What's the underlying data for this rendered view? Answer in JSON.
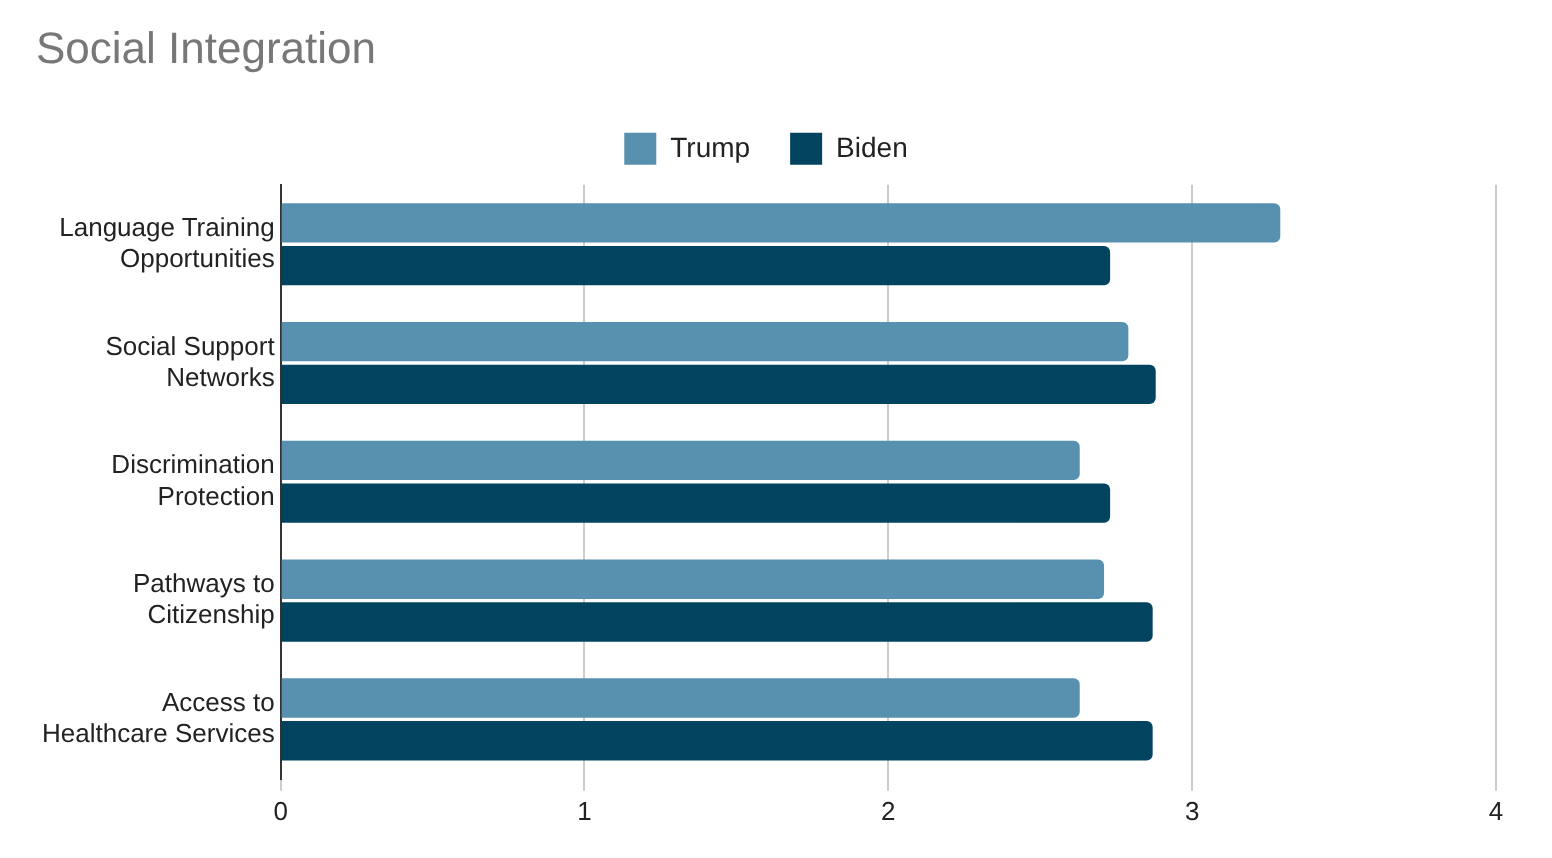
{
  "chart_data": {
    "type": "bar",
    "orientation": "horizontal",
    "title": "Social Integration",
    "categories": [
      "Language Training\nOpportunities",
      "Social Support\nNetworks",
      "Discrimination\nProtection",
      "Pathways to\nCitizenship",
      "Access to\nHealthcare Services"
    ],
    "series": [
      {
        "name": "Trump",
        "color": "#5891b0",
        "values": [
          3.29,
          2.79,
          2.63,
          2.71,
          2.63
        ]
      },
      {
        "name": "Biden",
        "color": "#02445f",
        "values": [
          2.73,
          2.88,
          2.73,
          2.87,
          2.87
        ]
      }
    ],
    "xlim": [
      0,
      4
    ],
    "xticks": [
      0,
      1,
      2,
      3,
      4
    ],
    "grid": "x",
    "legend": "top"
  }
}
